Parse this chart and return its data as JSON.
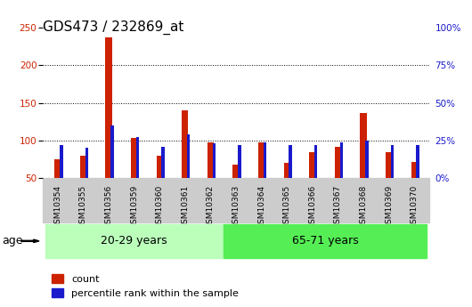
{
  "title": "GDS473 / 232869_at",
  "samples": [
    "GSM10354",
    "GSM10355",
    "GSM10356",
    "GSM10359",
    "GSM10360",
    "GSM10361",
    "GSM10362",
    "GSM10363",
    "GSM10364",
    "GSM10365",
    "GSM10366",
    "GSM10367",
    "GSM10368",
    "GSM10369",
    "GSM10370"
  ],
  "counts": [
    75,
    80,
    237,
    103,
    80,
    140,
    97,
    68,
    97,
    70,
    84,
    92,
    136,
    84,
    72
  ],
  "percentiles": [
    22,
    20,
    35,
    27,
    21,
    29,
    23,
    22,
    24,
    22,
    22,
    24,
    25,
    22,
    22
  ],
  "count_color": "#cc2200",
  "percentile_color": "#1a1acc",
  "ylim_left": [
    50,
    250
  ],
  "ylim_right": [
    0,
    100
  ],
  "yticks_left": [
    50,
    100,
    150,
    200,
    250
  ],
  "yticks_right": [
    0,
    25,
    50,
    75,
    100
  ],
  "ytick_labels_right": [
    "0%",
    "25%",
    "50%",
    "75%",
    "100%"
  ],
  "group1_label": "20-29 years",
  "group2_label": "65-71 years",
  "age_label": "age",
  "legend_count": "count",
  "legend_percentile": "percentile rank within the sample",
  "group1_color": "#bbffbb",
  "group2_color": "#55ee55",
  "red_bar_width": 0.25,
  "blue_bar_width": 0.12,
  "title_fontsize": 11,
  "tick_fontsize": 7.5
}
